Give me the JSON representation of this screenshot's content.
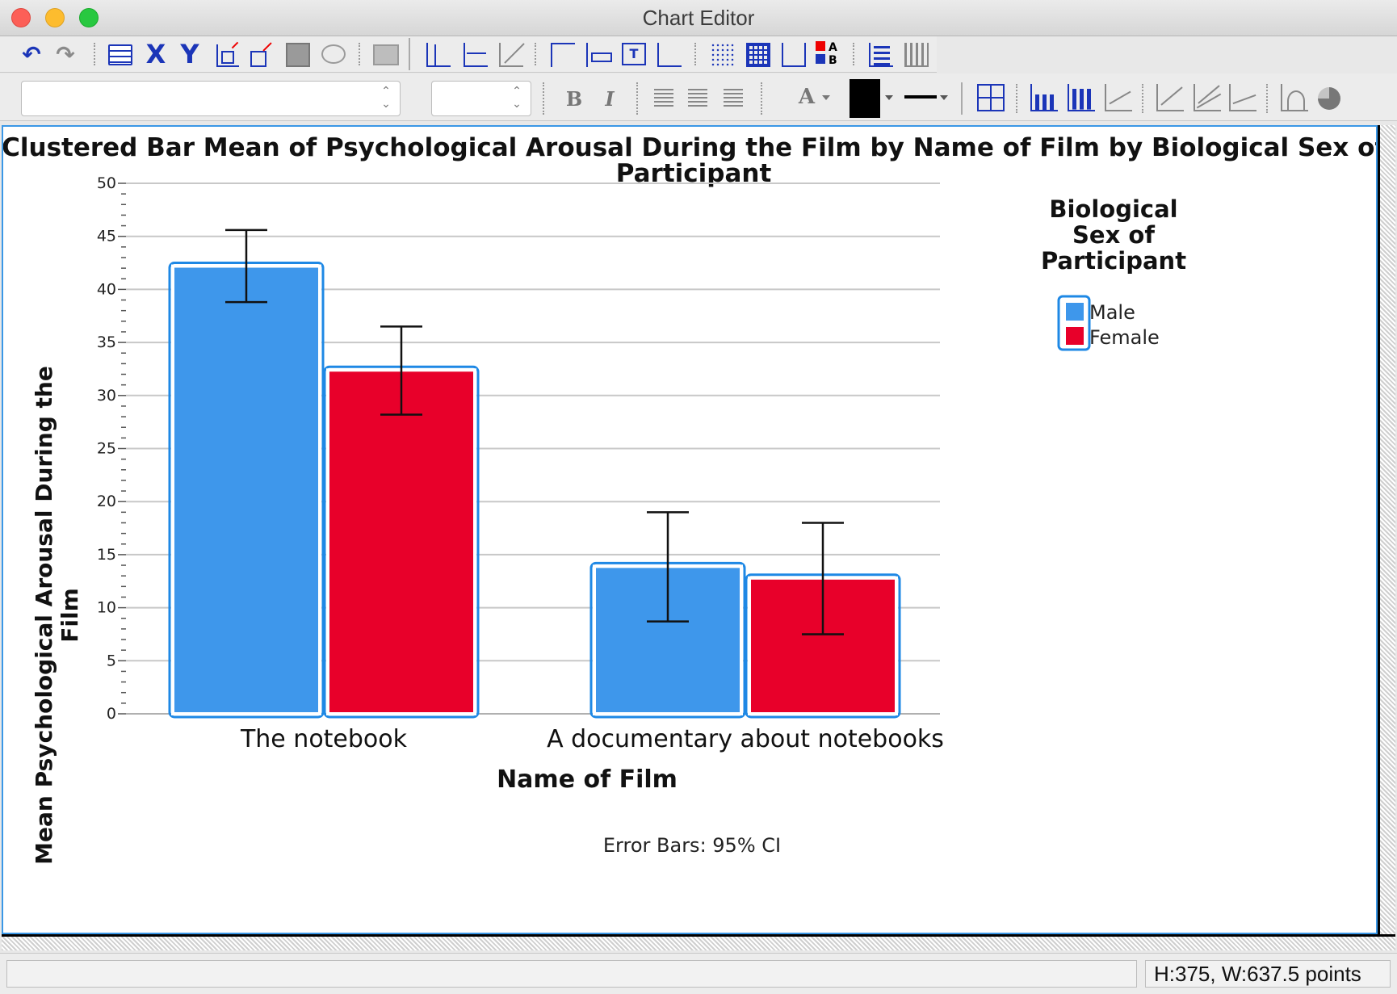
{
  "window": {
    "title": "Chart Editor"
  },
  "toolbar": {
    "font_name_value": "",
    "font_size_value": "",
    "bold_label": "B",
    "italic_label": "I",
    "x_axis_label": "X",
    "y_axis_label": "Y",
    "text_color_label": "A",
    "fill_color": "#000000"
  },
  "status": {
    "dimensions": "H:375, W:637.5 points"
  },
  "colors": {
    "male": "#3e97eb",
    "female": "#e8002a",
    "selection": "#1e88e5"
  },
  "chart_data": {
    "type": "bar",
    "title": "Clustered Bar Mean of Psychological Arousal During the Film by Name of Film by Biological Sex of Participant",
    "title_lines": [
      "Clustered Bar Mean of Psychological Arousal During the Film by Name of Film by Biological Sex of",
      "Participant"
    ],
    "xlabel": "Name of Film",
    "ylabel": "Mean Psychological Arousal During the Film",
    "ylabel_lines": [
      "Mean Psychological Arousal During the",
      "Film"
    ],
    "categories": [
      "The notebook",
      "A documentary about notebooks"
    ],
    "series": [
      {
        "name": "Male",
        "values": [
          42.2,
          13.9
        ],
        "ci_low": [
          38.8,
          8.7
        ],
        "ci_high": [
          45.6,
          19.0
        ]
      },
      {
        "name": "Female",
        "values": [
          32.4,
          12.8
        ],
        "ci_low": [
          28.2,
          7.5
        ],
        "ci_high": [
          36.5,
          18.0
        ]
      }
    ],
    "legend_title": "Biological Sex of Participant",
    "legend_title_lines": [
      "Biological",
      "Sex of",
      "Participant"
    ],
    "ylim": [
      0,
      50
    ],
    "yticks": [
      0,
      5,
      10,
      15,
      20,
      25,
      30,
      35,
      40,
      45,
      50
    ],
    "grid": true,
    "legend_position": "top-right",
    "footnote": "Error Bars: 95% CI"
  }
}
